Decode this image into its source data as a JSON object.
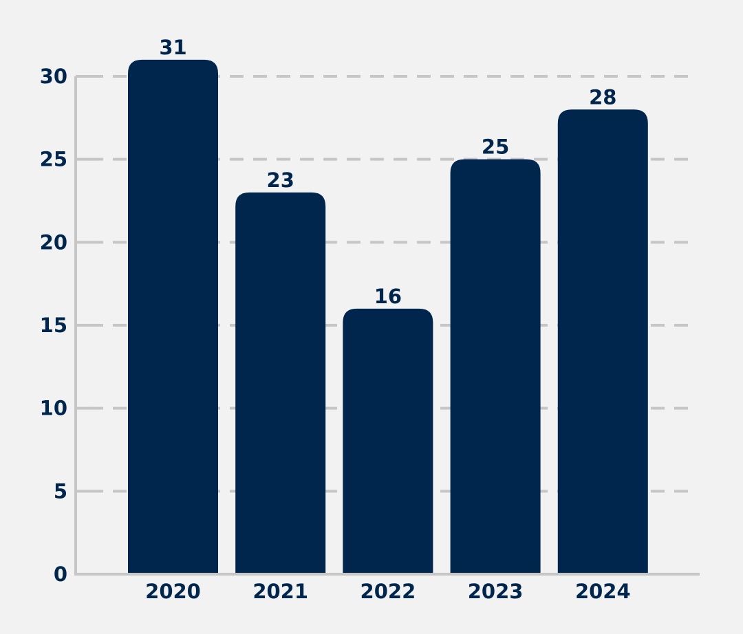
{
  "chart_data": {
    "type": "bar",
    "title": "",
    "xlabel": "",
    "ylabel": "",
    "categories": [
      "2020",
      "2021",
      "2022",
      "2023",
      "2024"
    ],
    "values": [
      31,
      23,
      16,
      25,
      28
    ],
    "ylim": [
      0,
      30
    ],
    "yticks": [
      0,
      5,
      10,
      15,
      20,
      25,
      30
    ],
    "grid": true,
    "grid_style": "dashed",
    "data_labels": true,
    "colors": {
      "bar": "#00264d",
      "text": "#00264d",
      "grid": "#c6c6c6",
      "axis": "#c6c6c6",
      "background": "#f2f2f2"
    }
  }
}
